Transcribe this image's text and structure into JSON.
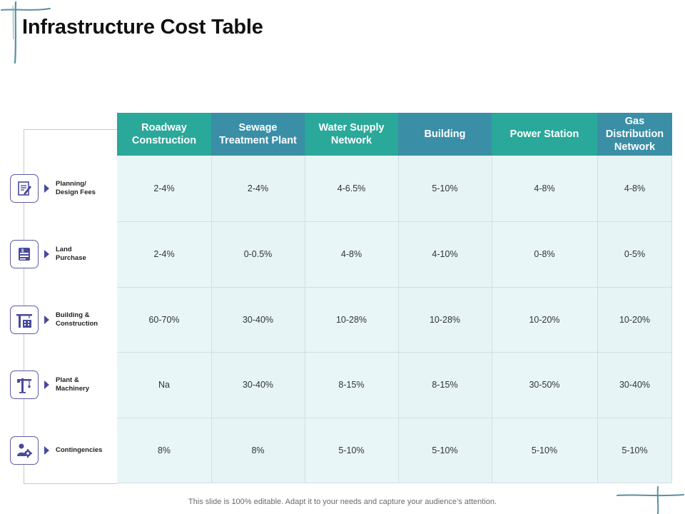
{
  "title": "Infrastructure Cost Table",
  "colors": {
    "teal": "#2aa89a",
    "blue_teal": "#3a8fa7",
    "grid_fill": "#e9f6f7",
    "icon_outline": "#5b5ba6"
  },
  "columns": [
    {
      "label": "Roadway\nConstruction",
      "color": "#2aa89a"
    },
    {
      "label": "Sewage\nTreatment Plant",
      "color": "#3a8fa7"
    },
    {
      "label": "Water Supply\nNetwork",
      "color": "#2aa89a"
    },
    {
      "label": "Building",
      "color": "#3a8fa7"
    },
    {
      "label": "Power Station",
      "color": "#2aa89a"
    },
    {
      "label": "Gas\nDistribution\nNetwork",
      "color": "#3a8fa7"
    }
  ],
  "rows": [
    {
      "label": "Planning/\nDesign Fees",
      "icon": "document-pen-icon",
      "values": [
        "2-4%",
        "2-4%",
        "4-6.5%",
        "5-10%",
        "4-8%",
        "4-8%"
      ]
    },
    {
      "label": "Land\nPurchase",
      "icon": "dollar-document-icon",
      "values": [
        "2-4%",
        "0-0.5%",
        "4-8%",
        "4-10%",
        "0-8%",
        "0-5%"
      ]
    },
    {
      "label": "Building &\nConstruction",
      "icon": "crane-building-icon",
      "values": [
        "60-70%",
        "30-40%",
        "10-28%",
        "10-28%",
        "10-20%",
        "10-20%"
      ]
    },
    {
      "label": "Plant &\nMachinery",
      "icon": "tower-crane-icon",
      "values": [
        "Na",
        "30-40%",
        "8-15%",
        "8-15%",
        "30-50%",
        "30-40%"
      ]
    },
    {
      "label": "Contingencies",
      "icon": "person-gear-icon",
      "values": [
        "8%",
        "8%",
        "5-10%",
        "5-10%",
        "5-10%",
        "5-10%"
      ]
    }
  ],
  "footer": "This slide is 100% editable. Adapt it to your needs and capture your audience’s attention."
}
